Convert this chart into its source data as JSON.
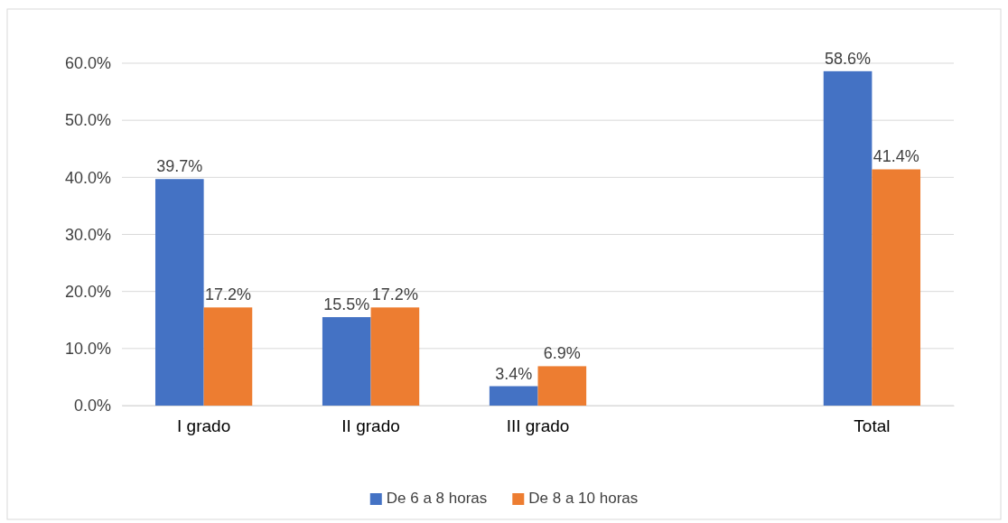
{
  "chart_data": {
    "type": "bar",
    "categories": [
      "I grado",
      "II grado",
      "III grado",
      null,
      "Total"
    ],
    "series": [
      {
        "name": "De 6 a 8 horas",
        "color": "#4472c4",
        "values": [
          39.7,
          15.5,
          3.4,
          null,
          58.6
        ]
      },
      {
        "name": "De 8 a 10 horas",
        "color": "#ed7d31",
        "values": [
          17.2,
          17.2,
          6.9,
          null,
          41.4
        ]
      }
    ],
    "ylim": [
      0,
      60
    ],
    "yticks": [
      {
        "value": 0,
        "label": "0.0%"
      },
      {
        "value": 10,
        "label": "10.0%"
      },
      {
        "value": 20,
        "label": "20.0%"
      },
      {
        "value": 30,
        "label": "30.0%"
      },
      {
        "value": 40,
        "label": "40.0%"
      },
      {
        "value": 50,
        "label": "50.0%"
      },
      {
        "value": 60,
        "label": "60.0%"
      }
    ],
    "value_labels": [
      [
        "39.7%",
        "15.5%",
        "3.4%",
        null,
        "58.6%"
      ],
      [
        "17.2%",
        "17.2%",
        "6.9%",
        null,
        "41.4%"
      ]
    ],
    "grid": "y",
    "legend": "bottom"
  }
}
